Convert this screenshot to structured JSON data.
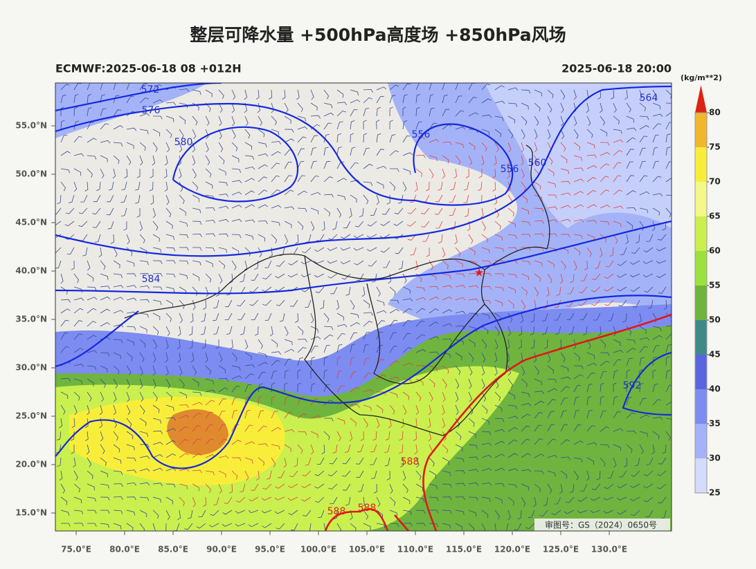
{
  "header": {
    "title": "整层可降水量 +500hPa高度场 +850hPa风场",
    "left": "ECMWF:2025-06-18 08 +012H",
    "right": "2025-06-18 20:00"
  },
  "map": {
    "lat_ticks": [
      {
        "value": 55,
        "label": "55.0°N"
      },
      {
        "value": 50,
        "label": "50.0°N"
      },
      {
        "value": 45,
        "label": "45.0°N"
      },
      {
        "value": 40,
        "label": "40.0°N"
      },
      {
        "value": 35,
        "label": "35.0°N"
      },
      {
        "value": 30,
        "label": "30.0°N"
      },
      {
        "value": 25,
        "label": "25.0°N"
      },
      {
        "value": 20,
        "label": "20.0°N"
      },
      {
        "value": 15,
        "label": "15.0°N"
      }
    ],
    "lon_ticks": [
      {
        "value": 75,
        "label": "75.0°E"
      },
      {
        "value": 80,
        "label": "80.0°E"
      },
      {
        "value": 85,
        "label": "85.0°E"
      },
      {
        "value": 90,
        "label": "90.0°E"
      },
      {
        "value": 95,
        "label": "95.0°E"
      },
      {
        "value": 100,
        "label": "100.0°E"
      },
      {
        "value": 105,
        "label": "105.0°E"
      },
      {
        "value": 110,
        "label": "110.0°E"
      },
      {
        "value": 115,
        "label": "115.0°E"
      },
      {
        "value": 120,
        "label": "120.0°E"
      },
      {
        "value": 125,
        "label": "125.0°E"
      },
      {
        "value": 130,
        "label": "130.0°E"
      }
    ],
    "contour_labels": [
      "572",
      "576",
      "580",
      "556",
      "556",
      "560",
      "564",
      "584",
      "592",
      "588",
      "588",
      "588"
    ],
    "note": "审图号：GS（2024）0650号"
  },
  "colorbar": {
    "unit": "(kg/m**2)",
    "ticks": [
      25,
      30,
      35,
      40,
      45,
      50,
      55,
      60,
      65,
      70,
      75,
      80
    ],
    "colors": [
      "#d4dcfb",
      "#a4b3f7",
      "#7d8cf0",
      "#5a66e0",
      "#3f8a86",
      "#6fb43e",
      "#9ce23e",
      "#c9f04e",
      "#f4f78a",
      "#f8ee3a",
      "#f0b72e",
      "#e37a25",
      "#dd2314"
    ]
  }
}
